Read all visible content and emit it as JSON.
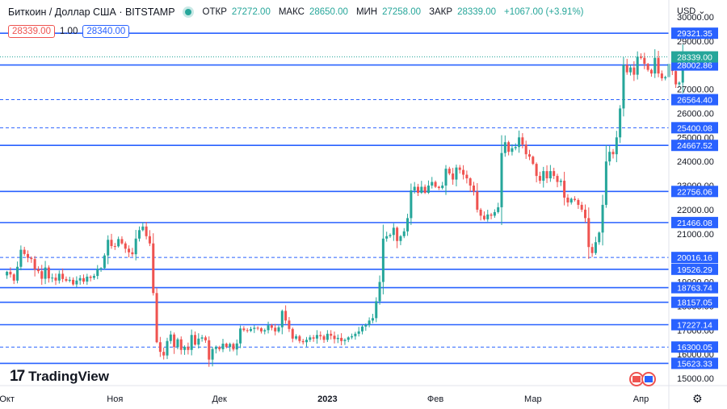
{
  "header": {
    "title": "Биткоин / Доллар США · BITSTAMP",
    "open_label": "ОТКР",
    "open": "27272.00",
    "high_label": "МАКС",
    "high": "28650.00",
    "low_label": "МИН",
    "low": "27258.00",
    "close_label": "ЗАКР",
    "close": "28339.00",
    "change": "+1067.00 (+3.91%)",
    "sell_price": "28339.00",
    "spread": "1.00",
    "buy_price": "28340.00"
  },
  "currency": "USD",
  "branding": "TradingView",
  "colors": {
    "up": "#26a69a",
    "down": "#ef5350",
    "level": "#2962ff",
    "axis_text": "#131722",
    "grid": "#f0f3fa"
  },
  "chart_data": {
    "type": "candlestick",
    "y_ticks": [
      15000,
      16000,
      17000,
      18000,
      19000,
      20000,
      21000,
      22000,
      23000,
      24000,
      25000,
      26000,
      27000,
      28000,
      29000,
      30000
    ],
    "y_tick_labels": [
      "15000.00",
      "16000.00",
      "17000.00",
      "18000.00",
      "19000.00",
      "20000.00",
      "21000.00",
      "22000.00",
      "23000.00",
      "24000.00",
      "25000.00",
      "26000.00",
      "27000.00",
      "28000.00",
      "29000.00",
      "30000.00"
    ],
    "ylim": [
      14700,
      30700
    ],
    "x_ticks": [
      {
        "label": "Окт",
        "day": 0
      },
      {
        "label": "Ноя",
        "day": 31
      },
      {
        "label": "Дек",
        "day": 61
      },
      {
        "label": "2023",
        "day": 92
      },
      {
        "label": "Фев",
        "day": 123
      },
      {
        "label": "Мар",
        "day": 151
      },
      {
        "label": "Апр",
        "day": 182
      }
    ],
    "xlim": [
      -2,
      190
    ],
    "solid_levels": [
      {
        "value": 29321.35,
        "label": "29321.35"
      },
      {
        "value": 28002.86,
        "label": "28002.86"
      },
      {
        "value": 24667.52,
        "label": "24667.52"
      },
      {
        "value": 22756.06,
        "label": "22756.06"
      },
      {
        "value": 21466.08,
        "label": "21466.08"
      },
      {
        "value": 19526.29,
        "label": "19526.29"
      },
      {
        "value": 18763.74,
        "label": "18763.74"
      },
      {
        "value": 18157.05,
        "label": "18157.05"
      },
      {
        "value": 17227.14,
        "label": "17227.14"
      },
      {
        "value": 15623.33,
        "label": "15623.33"
      }
    ],
    "dashed_levels": [
      {
        "value": 26564.4,
        "label": "26564.40"
      },
      {
        "value": 25400.08,
        "label": "25400.08"
      },
      {
        "value": 20016.16,
        "label": "20016.16"
      },
      {
        "value": 16300.05,
        "label": "16300.05"
      }
    ],
    "last_price": {
      "value": 28339.0,
      "label": "28339.00"
    },
    "closes": [
      19423,
      19313,
      19057,
      19629,
      20337,
      20160,
      20000,
      19950,
      19530,
      19447,
      19133,
      19600,
      19150,
      19180,
      19060,
      19340,
      19124,
      19050,
      19090,
      18900,
      19060,
      19160,
      19015,
      19220,
      19170,
      19250,
      19550,
      19575,
      20100,
      20750,
      20490,
      20480,
      20780,
      20600,
      20380,
      20230,
      20150,
      20800,
      21150,
      21300,
      20900,
      20600,
      18540,
      16500,
      16100,
      15950,
      16550,
      16820,
      16300,
      16620,
      16180,
      16310,
      16180,
      16800,
      16400,
      16650,
      16700,
      16580,
      15780,
      16220,
      16300,
      16210,
      16440,
      16300,
      16430,
      16200,
      16450,
      17070,
      17000,
      16970,
      17050,
      17100,
      17080,
      16950,
      17000,
      17200,
      17100,
      16950,
      17120,
      17800,
      17400,
      17050,
      16650,
      16750,
      16550,
      16500,
      16600,
      16700,
      16650,
      16800,
      16750,
      16600,
      16850,
      16770,
      16630,
      16680,
      16550,
      16600,
      16700,
      16750,
      16850,
      16950,
      17150,
      17220,
      17400,
      17500,
      18200,
      19000,
      20800,
      20900,
      20950,
      21250,
      20700,
      20900,
      21100,
      21650,
      22800,
      22950,
      22700,
      22950,
      22700,
      23000,
      23150,
      22950,
      22900,
      23000,
      23700,
      23500,
      23250,
      23750,
      23650,
      23450,
      23300,
      23000,
      22750,
      22000,
      21750,
      21600,
      21800,
      21750,
      21900,
      22100,
      24350,
      24800,
      24400,
      24550,
      24600,
      25000,
      24700,
      24300,
      24200,
      23900,
      23400,
      23200,
      23600,
      23300,
      23600,
      23400,
      23150,
      23200,
      22500,
      22300,
      22450,
      22400,
      22200,
      22000,
      21650,
      20450,
      20200,
      20650,
      21050,
      22200,
      24000,
      24400,
      24300,
      25000,
      26200,
      28000,
      27700,
      27900,
      27600,
      28350,
      28300,
      28050,
      27800,
      27650,
      28300,
      27650,
      27450,
      27500,
      28050,
      27750,
      27200,
      27272,
      28339
    ]
  }
}
